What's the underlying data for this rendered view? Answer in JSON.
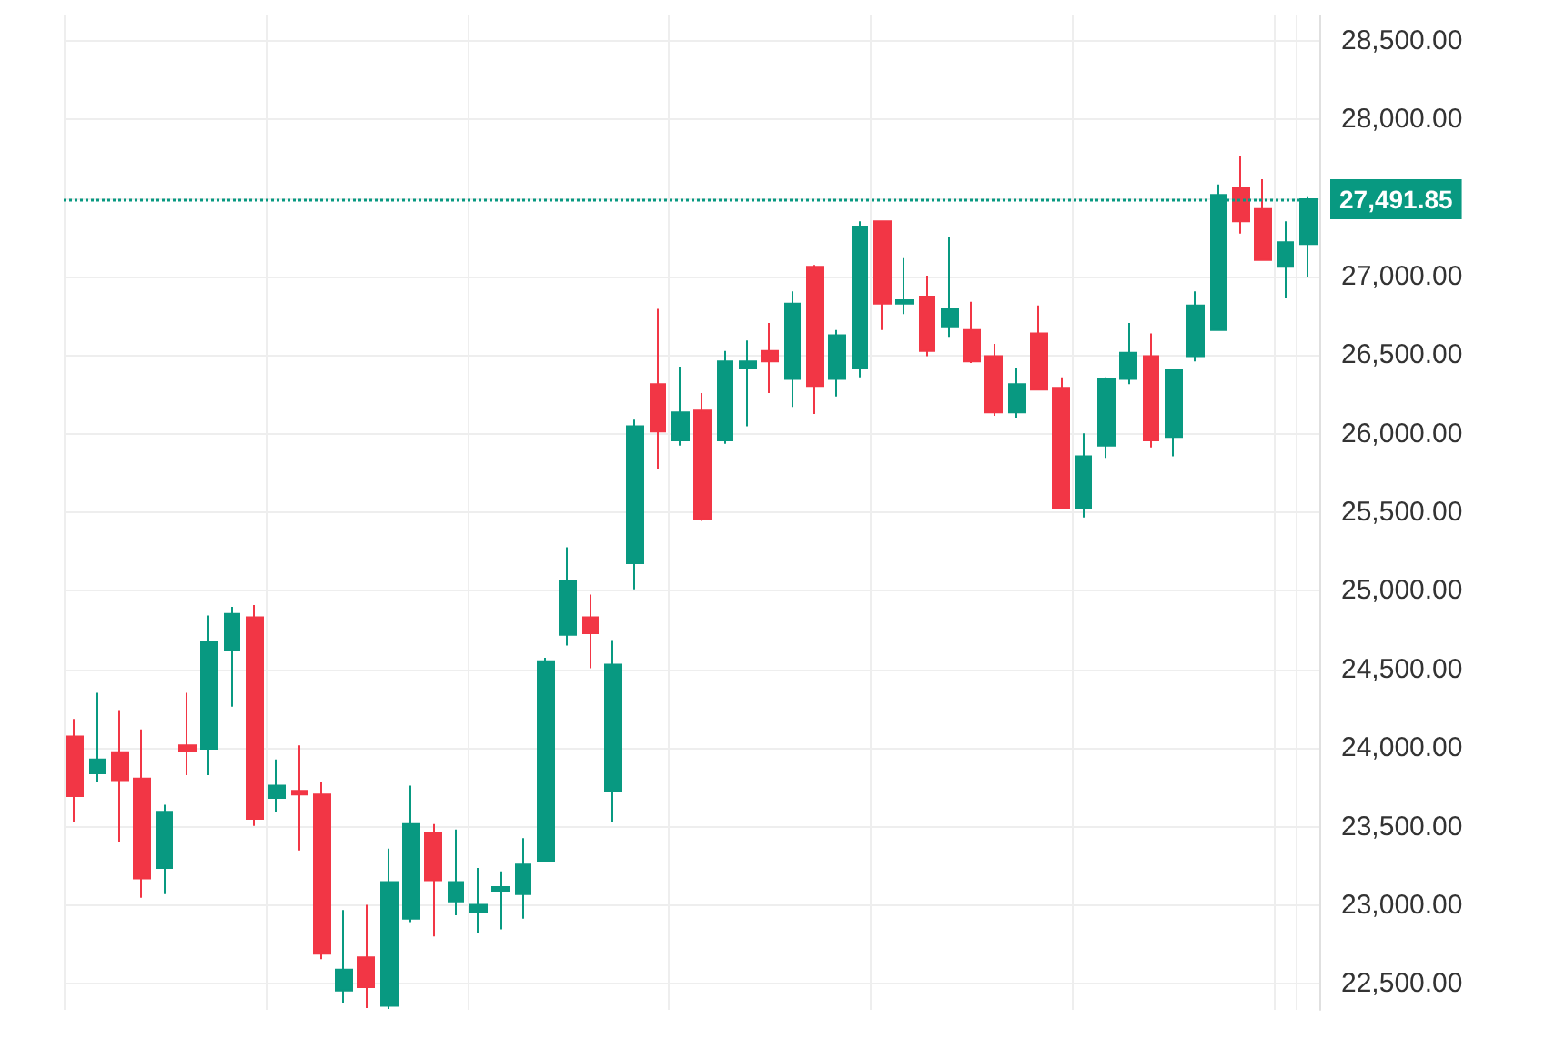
{
  "chart_data": {
    "type": "candlestick",
    "categories": [
      null,
      null,
      null,
      null,
      null,
      null,
      null,
      null,
      null,
      null,
      null,
      null,
      null,
      null,
      null,
      null,
      null,
      null,
      null,
      null,
      null,
      null,
      null,
      null,
      null,
      null,
      null,
      null,
      null,
      null,
      null,
      null,
      null,
      null,
      null,
      null,
      null,
      null,
      null,
      null,
      null,
      null,
      null,
      null,
      null,
      null,
      null,
      null,
      null,
      null,
      null,
      null,
      null,
      null,
      null,
      null
    ],
    "ohlc": [
      [
        24073,
        24185,
        23527,
        23694
      ],
      [
        23839,
        24352,
        23784,
        23928
      ],
      [
        23973,
        24241,
        23404,
        23795
      ],
      [
        23806,
        24118,
        23048,
        23170
      ],
      [
        23237,
        23639,
        23070,
        23594
      ],
      [
        24017,
        24352,
        23828,
        23984
      ],
      [
        23995,
        24843,
        23828,
        24676
      ],
      [
        24620,
        24898,
        24263,
        24854
      ],
      [
        24832,
        24910,
        23505,
        23549
      ],
      [
        23683,
        23928,
        23594,
        23761
      ],
      [
        23728,
        24017,
        23349,
        23705
      ],
      [
        23705,
        23784,
        22657,
        22691
      ],
      [
        22457,
        22970,
        22380,
        22590
      ],
      [
        22669,
        23003,
        22345,
        22479
      ],
      [
        22360,
        23360,
        22340,
        23148
      ],
      [
        22914,
        23761,
        22892,
        23516
      ],
      [
        23460,
        23516,
        22802,
        23159
      ],
      [
        23025,
        23482,
        22936,
        23148
      ],
      [
        22958,
        23237,
        22825,
        23003
      ],
      [
        23092,
        23215,
        22847,
        23115
      ],
      [
        23070,
        23427,
        22914,
        23259
      ],
      [
        23282,
        24575,
        23282,
        24553
      ],
      [
        24720,
        25278,
        24653,
        25066
      ],
      [
        24832,
        24977,
        24508,
        24731
      ],
      [
        23728,
        24687,
        23527,
        24531
      ],
      [
        25177,
        26090,
        25010,
        26047
      ],
      [
        26315,
        26794,
        25779,
        26014
      ],
      [
        25958,
        26426,
        25924,
        26136
      ],
      [
        26147,
        26259,
        25445,
        25456
      ],
      [
        25958,
        26526,
        25936,
        26460
      ],
      [
        26415,
        26593,
        26047,
        26460
      ],
      [
        26526,
        26705,
        26259,
        26460
      ],
      [
        26348,
        26906,
        26170,
        26827
      ],
      [
        27062,
        27073,
        26125,
        26303
      ],
      [
        26348,
        26660,
        26237,
        26627
      ],
      [
        26415,
        27352,
        26359,
        27318
      ],
      [
        27352,
        27352,
        26660,
        26827
      ],
      [
        26827,
        27117,
        26761,
        26850
      ],
      [
        26872,
        27006,
        26493,
        26526
      ],
      [
        26683,
        27251,
        26616,
        26794
      ],
      [
        26660,
        26839,
        26450,
        26460
      ],
      [
        26493,
        26571,
        26114,
        26136
      ],
      [
        26136,
        26415,
        26103,
        26315
      ],
      [
        26638,
        26816,
        26281,
        26281
      ],
      [
        26292,
        26359,
        25523,
        25523
      ],
      [
        25523,
        26002,
        25467,
        25857
      ],
      [
        25924,
        26359,
        25846,
        26348
      ],
      [
        26348,
        26705,
        26315,
        26515
      ],
      [
        26493,
        26638,
        25913,
        25958
      ],
      [
        25980,
        26404,
        25857,
        26404
      ],
      [
        26493,
        26906,
        26460,
        26816
      ],
      [
        26660,
        27586,
        26660,
        27519
      ],
      [
        27563,
        27764,
        27273,
        27352
      ],
      [
        27430,
        27619,
        27100,
        27106
      ],
      [
        27062,
        27352,
        26861,
        27218
      ],
      [
        27207,
        27510,
        26995,
        27491.85
      ]
    ],
    "colors": [
      "#f23645",
      "#089981",
      "#f23645",
      "#f23645",
      "#089981",
      "#f23645",
      "#089981",
      "#089981",
      "#f23645",
      "#089981",
      "#f23645",
      "#f23645",
      "#089981",
      "#f23645",
      "#089981",
      "#089981",
      "#f23645",
      "#089981",
      "#089981",
      "#089981",
      "#089981",
      "#089981",
      "#089981",
      "#f23645",
      "#089981",
      "#089981",
      "#f23645",
      "#089981",
      "#f23645",
      "#089981",
      "#089981",
      "#f23645",
      "#089981",
      "#f23645",
      "#089981",
      "#089981",
      "#f23645",
      "#089981",
      "#f23645",
      "#089981",
      "#f23645",
      "#f23645",
      "#089981",
      "#f23645",
      "#f23645",
      "#089981",
      "#089981",
      "#089981",
      "#f23645",
      "#089981",
      "#089981",
      "#089981",
      "#f23645",
      "#f23645",
      "#089981",
      "#089981"
    ],
    "ylim": [
      22334,
      28667
    ],
    "yticks": [
      {
        "value": 22500,
        "label": "22,500.00"
      },
      {
        "value": 23000,
        "label": "23,000.00"
      },
      {
        "value": 23500,
        "label": "23,500.00"
      },
      {
        "value": 24000,
        "label": "24,000.00"
      },
      {
        "value": 24500,
        "label": "24,500.00"
      },
      {
        "value": 25000,
        "label": "25,000.00"
      },
      {
        "value": 25500,
        "label": "25,500.00"
      },
      {
        "value": 26000,
        "label": "26,000.00"
      },
      {
        "value": 26500,
        "label": "26,500.00"
      },
      {
        "value": 27000,
        "label": "27,000.00"
      },
      {
        "value": 27500,
        "label": null
      },
      {
        "value": 28000,
        "label": "28,000.00"
      },
      {
        "value": 28500,
        "label": "28,500.00"
      }
    ],
    "ref_lines": [
      {
        "axis": "y",
        "value": 27491.85,
        "label": "27,491.85",
        "color": "#089981",
        "line_style": "dotted"
      }
    ],
    "grid": true
  }
}
